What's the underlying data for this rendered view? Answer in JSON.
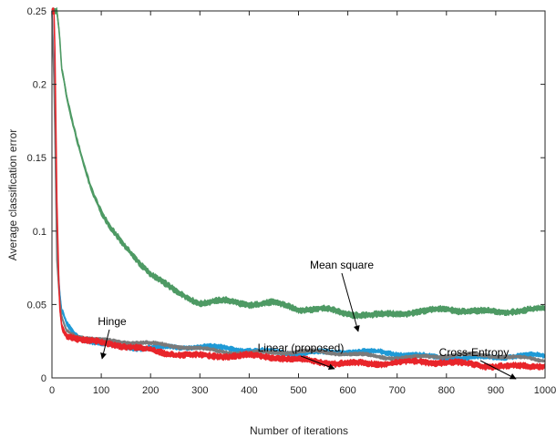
{
  "chart_data": {
    "type": "line",
    "xlabel": "Number of iterations",
    "ylabel": "Average classification error",
    "xlim": [
      0,
      1000
    ],
    "ylim": [
      0,
      0.25
    ],
    "grid": false,
    "x_ticks": [
      0,
      100,
      200,
      300,
      400,
      500,
      600,
      700,
      800,
      900,
      1000
    ],
    "y_ticks": [
      0,
      0.05,
      0.1,
      0.15,
      0.2,
      0.25
    ],
    "x_tick_labels": [
      "0",
      "100",
      "200",
      "300",
      "400",
      "500",
      "600",
      "700",
      "800",
      "900",
      "1000"
    ],
    "y_tick_labels": [
      "0",
      "0.05",
      "0.1",
      "0.15",
      "0.2",
      "0.25"
    ],
    "series": [
      {
        "name": "Mean square",
        "color": "#4e9a64",
        "band": 0.0025,
        "x": [
          0,
          5,
          10,
          15,
          20,
          30,
          40,
          50,
          60,
          80,
          100,
          120,
          150,
          200,
          250,
          300,
          350,
          400,
          450,
          500,
          550,
          600,
          650,
          700,
          750,
          800,
          850,
          900,
          950,
          1000
        ],
        "y": [
          0.25,
          0.25,
          0.25,
          0.235,
          0.21,
          0.19,
          0.175,
          0.162,
          0.15,
          0.128,
          0.112,
          0.1,
          0.088,
          0.072,
          0.06,
          0.052,
          0.052,
          0.049,
          0.05,
          0.047,
          0.048,
          0.045,
          0.043,
          0.043,
          0.044,
          0.046,
          0.046,
          0.046,
          0.047,
          0.047
        ]
      },
      {
        "name": "Cross-Entropy",
        "color": "#1f9ad6",
        "band": 0.002,
        "x": [
          0,
          5,
          10,
          15,
          20,
          30,
          50,
          70,
          100,
          150,
          200,
          300,
          400,
          500,
          600,
          700,
          800,
          900,
          1000
        ],
        "y": [
          0.25,
          0.2,
          0.09,
          0.06,
          0.045,
          0.036,
          0.029,
          0.026,
          0.024,
          0.022,
          0.021,
          0.02,
          0.019,
          0.018,
          0.017,
          0.016,
          0.015,
          0.014,
          0.014
        ]
      },
      {
        "name": "Hinge",
        "color": "#7a7a7a",
        "band": 0.0015,
        "x": [
          0,
          5,
          10,
          15,
          20,
          30,
          50,
          70,
          100,
          150,
          200,
          300,
          400,
          500,
          600,
          700,
          800,
          900,
          1000
        ],
        "y": [
          0.25,
          0.19,
          0.08,
          0.055,
          0.042,
          0.034,
          0.03,
          0.028,
          0.026,
          0.024,
          0.022,
          0.02,
          0.018,
          0.017,
          0.016,
          0.015,
          0.015,
          0.014,
          0.013
        ]
      },
      {
        "name": "Linear (proposed)",
        "color": "#e8252a",
        "band": 0.0025,
        "x": [
          0,
          5,
          10,
          15,
          20,
          30,
          50,
          70,
          100,
          150,
          200,
          300,
          400,
          500,
          600,
          700,
          800,
          900,
          1000
        ],
        "y": [
          0.25,
          0.25,
          0.12,
          0.05,
          0.035,
          0.029,
          0.026,
          0.024,
          0.023,
          0.021,
          0.019,
          0.016,
          0.014,
          0.012,
          0.011,
          0.01,
          0.0095,
          0.009,
          0.009
        ]
      }
    ],
    "annotations": [
      {
        "text": "Mean square",
        "series": "Mean square"
      },
      {
        "text": "Hinge",
        "series": "Hinge"
      },
      {
        "text": "Linear (proposed)",
        "series": "Linear (proposed)"
      },
      {
        "text": "Cross-Entropy",
        "series": "Cross-Entropy"
      }
    ]
  }
}
